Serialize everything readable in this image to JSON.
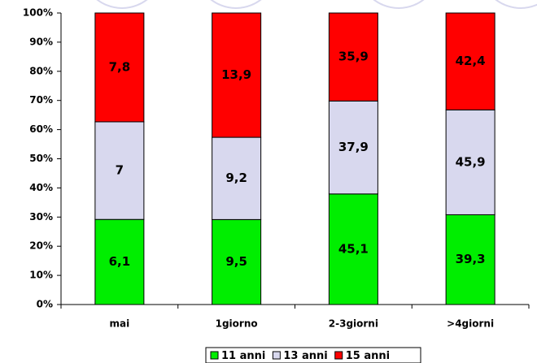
{
  "chart_data": {
    "type": "bar",
    "stack": "percent",
    "categories": [
      "mai",
      "1giorno",
      "2-3giorni",
      ">4giorni"
    ],
    "series": [
      {
        "name": "11 anni",
        "color": "#00ee00",
        "values": [
          6.1,
          9.5,
          45.1,
          39.3
        ],
        "value_labels": [
          "6,1",
          "9,5",
          "45,1",
          "39,3"
        ]
      },
      {
        "name": "13 anni",
        "color": "#d8d8ee",
        "values": [
          7,
          9.2,
          37.9,
          45.9
        ],
        "value_labels": [
          "7",
          "9,2",
          "37,9",
          "45,9"
        ]
      },
      {
        "name": "15 anni",
        "color": "#ff0000",
        "values": [
          7.8,
          13.9,
          35.9,
          42.4
        ],
        "value_labels": [
          "7,8",
          "13,9",
          "35,9",
          "42,4"
        ]
      }
    ],
    "ylim": [
      0,
      100
    ],
    "yticks": [
      {
        "value": 0,
        "label": "0%"
      },
      {
        "value": 10,
        "label": "10%"
      },
      {
        "value": 20,
        "label": "20%"
      },
      {
        "value": 30,
        "label": "30%"
      },
      {
        "value": 40,
        "label": "40%"
      },
      {
        "value": 50,
        "label": "50%"
      },
      {
        "value": 60,
        "label": "60%"
      },
      {
        "value": 70,
        "label": "70%"
      },
      {
        "value": 80,
        "label": "80%"
      },
      {
        "value": 90,
        "label": "90%"
      },
      {
        "value": 100,
        "label": "100%"
      }
    ],
    "legend": "bottom"
  }
}
